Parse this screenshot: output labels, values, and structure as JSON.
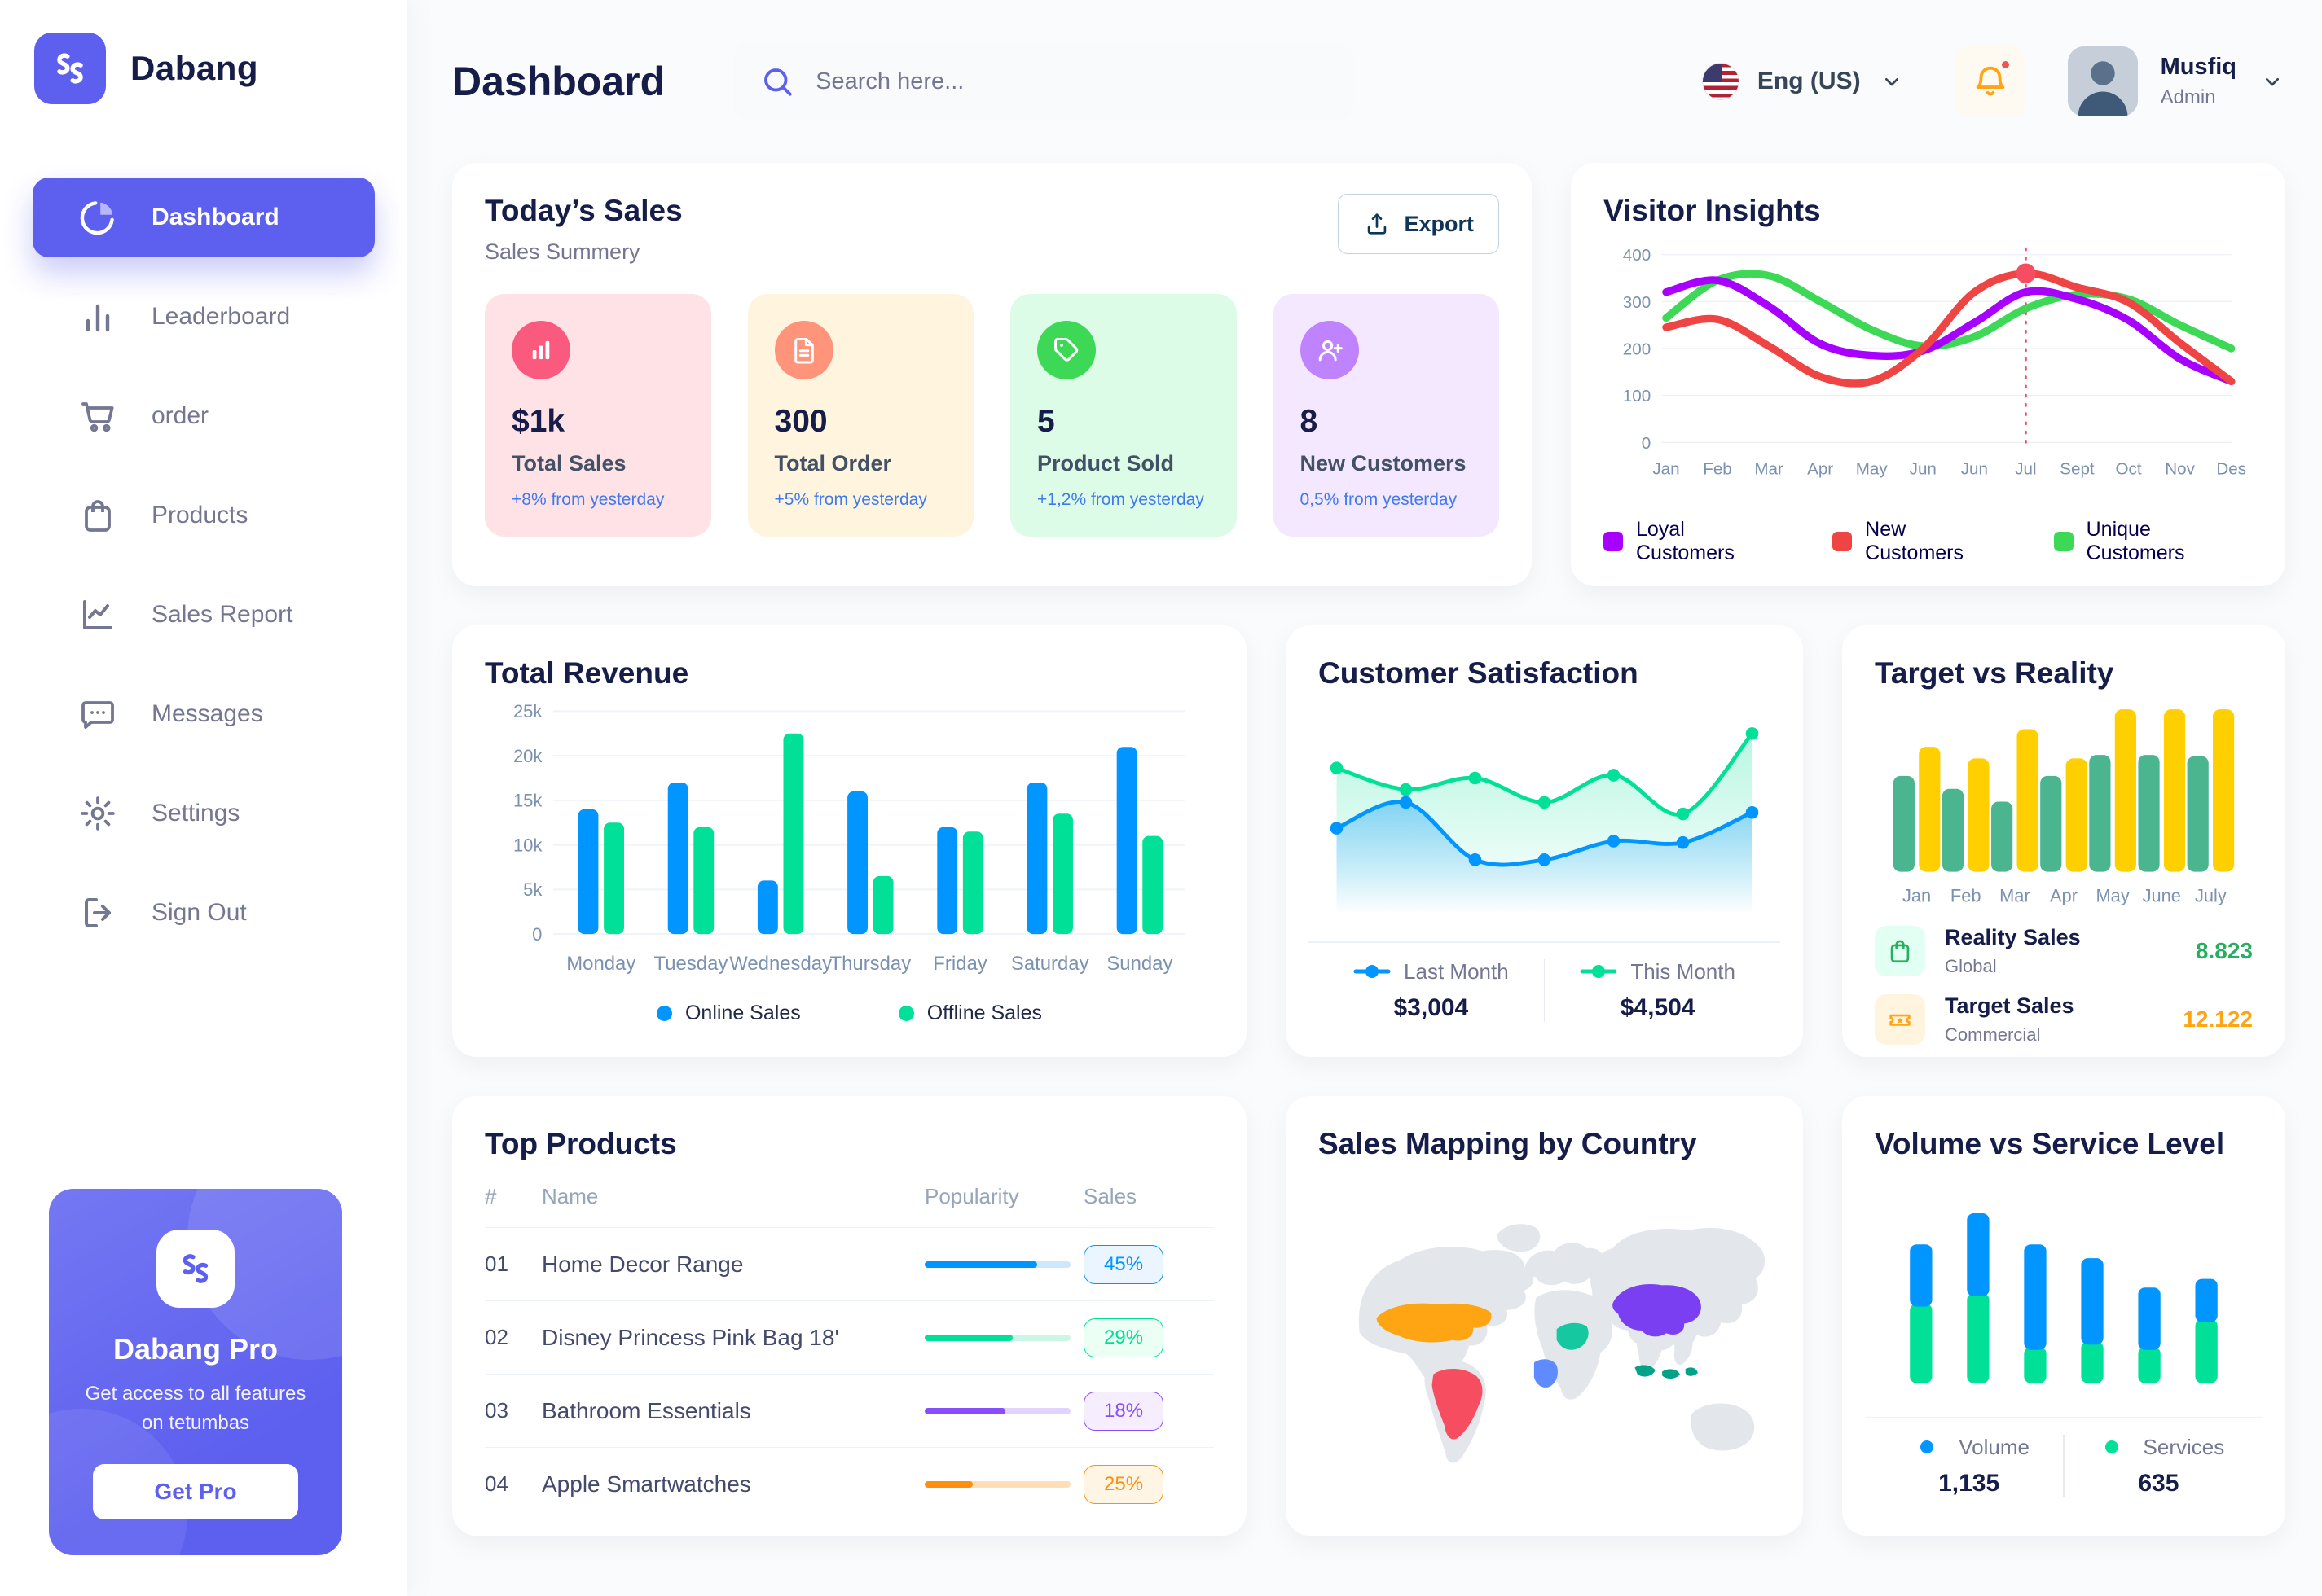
{
  "app": {
    "name": "Dabang"
  },
  "sidebar": {
    "items": [
      {
        "label": "Dashboard",
        "icon": "pie-chart-icon",
        "active": true
      },
      {
        "label": "Leaderboard",
        "icon": "bar-chart-icon",
        "active": false
      },
      {
        "label": "order",
        "icon": "cart-icon",
        "active": false
      },
      {
        "label": "Products",
        "icon": "bag-icon",
        "active": false
      },
      {
        "label": "Sales Report",
        "icon": "line-chart-icon",
        "active": false
      },
      {
        "label": "Messages",
        "icon": "message-icon",
        "active": false
      },
      {
        "label": "Settings",
        "icon": "gear-icon",
        "active": false
      },
      {
        "label": "Sign Out",
        "icon": "sign-out-icon",
        "active": false
      }
    ],
    "pro_card": {
      "title": "Dabang Pro",
      "subtitle": "Get access to all features on tetumbas",
      "button": "Get Pro"
    }
  },
  "header": {
    "title": "Dashboard",
    "search_placeholder": "Search here...",
    "language": "Eng (US)",
    "user": {
      "name": "Musfiq",
      "role": "Admin"
    }
  },
  "today_sales": {
    "title": "Today’s Sales",
    "subtitle": "Sales Summery",
    "export_label": "Export",
    "stats": [
      {
        "value": "$1k",
        "label": "Total Sales",
        "delta": "+8% from yesterday",
        "bg": "#FFE2E5",
        "icon_bg": "#FA5A7D",
        "icon": "chart-icon"
      },
      {
        "value": "300",
        "label": "Total Order",
        "delta": "+5% from yesterday",
        "bg": "#FFF4DE",
        "icon_bg": "#FF947A",
        "icon": "file-icon"
      },
      {
        "value": "5",
        "label": "Product Sold",
        "delta": "+1,2% from yesterday",
        "bg": "#DCFCE7",
        "icon_bg": "#3CD856",
        "icon": "tag-icon"
      },
      {
        "value": "8",
        "label": "New Customers",
        "delta": "0,5% from yesterday",
        "bg": "#F3E8FF",
        "icon_bg": "#BF83FF",
        "icon": "new-user-icon"
      }
    ]
  },
  "charts": {
    "visitor_insights": {
      "title": "Visitor Insights",
      "type": "line",
      "months": [
        "Jan",
        "Feb",
        "Mar",
        "Apr",
        "May",
        "Jun",
        "Jun",
        "Jul",
        "Sept",
        "Oct",
        "Nov",
        "Des"
      ],
      "yticks": [
        0,
        100,
        200,
        300,
        400
      ],
      "ylim": [
        0,
        400
      ],
      "highlight_month_index": 7,
      "series": [
        {
          "name": "Loyal Customers",
          "color": "#A700FF",
          "values": [
            320,
            345,
            290,
            210,
            185,
            195,
            255,
            320,
            305,
            260,
            178,
            130
          ]
        },
        {
          "name": "New Customers",
          "color": "#EF4444",
          "values": [
            245,
            262,
            205,
            140,
            130,
            200,
            320,
            360,
            330,
            298,
            212,
            130
          ]
        },
        {
          "name": "Unique Customers",
          "color": "#3CD856",
          "values": [
            265,
            345,
            355,
            300,
            240,
            205,
            225,
            285,
            315,
            305,
            250,
            200
          ]
        }
      ]
    },
    "total_revenue": {
      "title": "Total Revenue",
      "type": "bar",
      "categories": [
        "Monday",
        "Tuesday",
        "Wednesday",
        "Thursday",
        "Friday",
        "Saturday",
        "Sunday"
      ],
      "ytick_labels": [
        "0",
        "5k",
        "10k",
        "15k",
        "20k",
        "25k"
      ],
      "ymax": 25,
      "series": [
        {
          "name": "Online Sales",
          "color": "#0095FF",
          "values": [
            14,
            17,
            6,
            16,
            12,
            17,
            21
          ]
        },
        {
          "name": "Offline Sales",
          "color": "#00E096",
          "values": [
            12.5,
            12,
            22.5,
            6.5,
            11.5,
            13.5,
            11
          ]
        }
      ]
    },
    "customer_satisfaction": {
      "title": "Customer Satisfaction",
      "type": "area",
      "ymax": 6.8,
      "series": [
        {
          "name": "Last Month",
          "color": "#0095FF",
          "total": "$3,004",
          "values": [
            3.0,
            3.9,
            1.9,
            1.9,
            2.55,
            2.5,
            3.55
          ]
        },
        {
          "name": "This Month",
          "color": "#00E096",
          "total": "$4,504",
          "values": [
            5.1,
            4.35,
            4.75,
            3.9,
            4.85,
            3.5,
            6.3
          ]
        }
      ]
    },
    "target_vs_reality": {
      "title": "Target vs Reality",
      "type": "bar",
      "months": [
        "Jan",
        "Feb",
        "Mar",
        "Apr",
        "May",
        "June",
        "July"
      ],
      "ymax": 14,
      "series": [
        {
          "name": "Reality Sales",
          "color": "#4AB58E",
          "values": [
            8.2,
            7.1,
            6,
            8.2,
            10,
            10,
            9.9
          ]
        },
        {
          "name": "Target Sales",
          "color": "#FFCF00",
          "values": [
            10.7,
            9.7,
            12.2,
            9.7,
            13.9,
            13.9,
            13.9
          ]
        }
      ],
      "legend": [
        {
          "label": "Reality Sales",
          "sublabel": "Global",
          "value": "8.823",
          "value_color": "#27AE60",
          "icon": "bag-icon",
          "icon_bg": "#E2FFF3",
          "icon_color": "#27AE60"
        },
        {
          "label": "Target Sales",
          "sublabel": "Commercial",
          "value": "12.122",
          "value_color": "#FFA412",
          "icon": "ticket-icon",
          "icon_bg": "#FFF4DE",
          "icon_color": "#FFA412"
        }
      ]
    },
    "top_products": {
      "title": "Top Products",
      "columns": [
        "#",
        "Name",
        "Popularity",
        "Sales"
      ],
      "rows": [
        {
          "index": "01",
          "name": "Home Decor Range",
          "popularity": 77,
          "sales": "45%",
          "color": "#0095FF",
          "track": "#CDE7FF",
          "badge_bg": "#EAF5FF"
        },
        {
          "index": "02",
          "name": "Disney Princess Pink Bag 18'",
          "popularity": 60,
          "sales": "29%",
          "color": "#00E096",
          "track": "#CBF5E5",
          "badge_bg": "#EBFFF5"
        },
        {
          "index": "03",
          "name": "Bathroom Essentials",
          "popularity": 55,
          "sales": "18%",
          "color": "#884DFF",
          "track": "#E2D4FF",
          "badge_bg": "#F6EDFF"
        },
        {
          "index": "04",
          "name": "Apple Smartwatches",
          "popularity": 33,
          "sales": "25%",
          "color": "#FF8F0D",
          "track": "#FFDEB8",
          "badge_bg": "#FFF5E5"
        }
      ]
    },
    "sales_map": {
      "title": "Sales Mapping by Country",
      "countries": [
        {
          "id": "usa",
          "name": "United States",
          "color": "#FFA412"
        },
        {
          "id": "brazil",
          "name": "Brazil",
          "color": "#F64E60"
        },
        {
          "id": "saudi-arabia",
          "name": "Saudi Arabia",
          "color": "#16C8A0"
        },
        {
          "id": "dr-congo",
          "name": "DR Congo",
          "color": "#5E8BFF"
        },
        {
          "id": "china",
          "name": "China",
          "color": "#7B3FF2"
        },
        {
          "id": "indonesia",
          "name": "Indonesia",
          "color": "#00A389"
        }
      ]
    },
    "volume_vs_service": {
      "title": "Volume vs Service Level",
      "type": "stacked-bar",
      "series": [
        {
          "name": "Volume",
          "color": "#0095FF",
          "total": "1,135",
          "values": [
            36,
            48,
            61,
            50,
            36,
            25
          ]
        },
        {
          "name": "Services",
          "color": "#00E096",
          "total": "635",
          "values": [
            46,
            52,
            21,
            24,
            21,
            37
          ]
        }
      ]
    }
  }
}
